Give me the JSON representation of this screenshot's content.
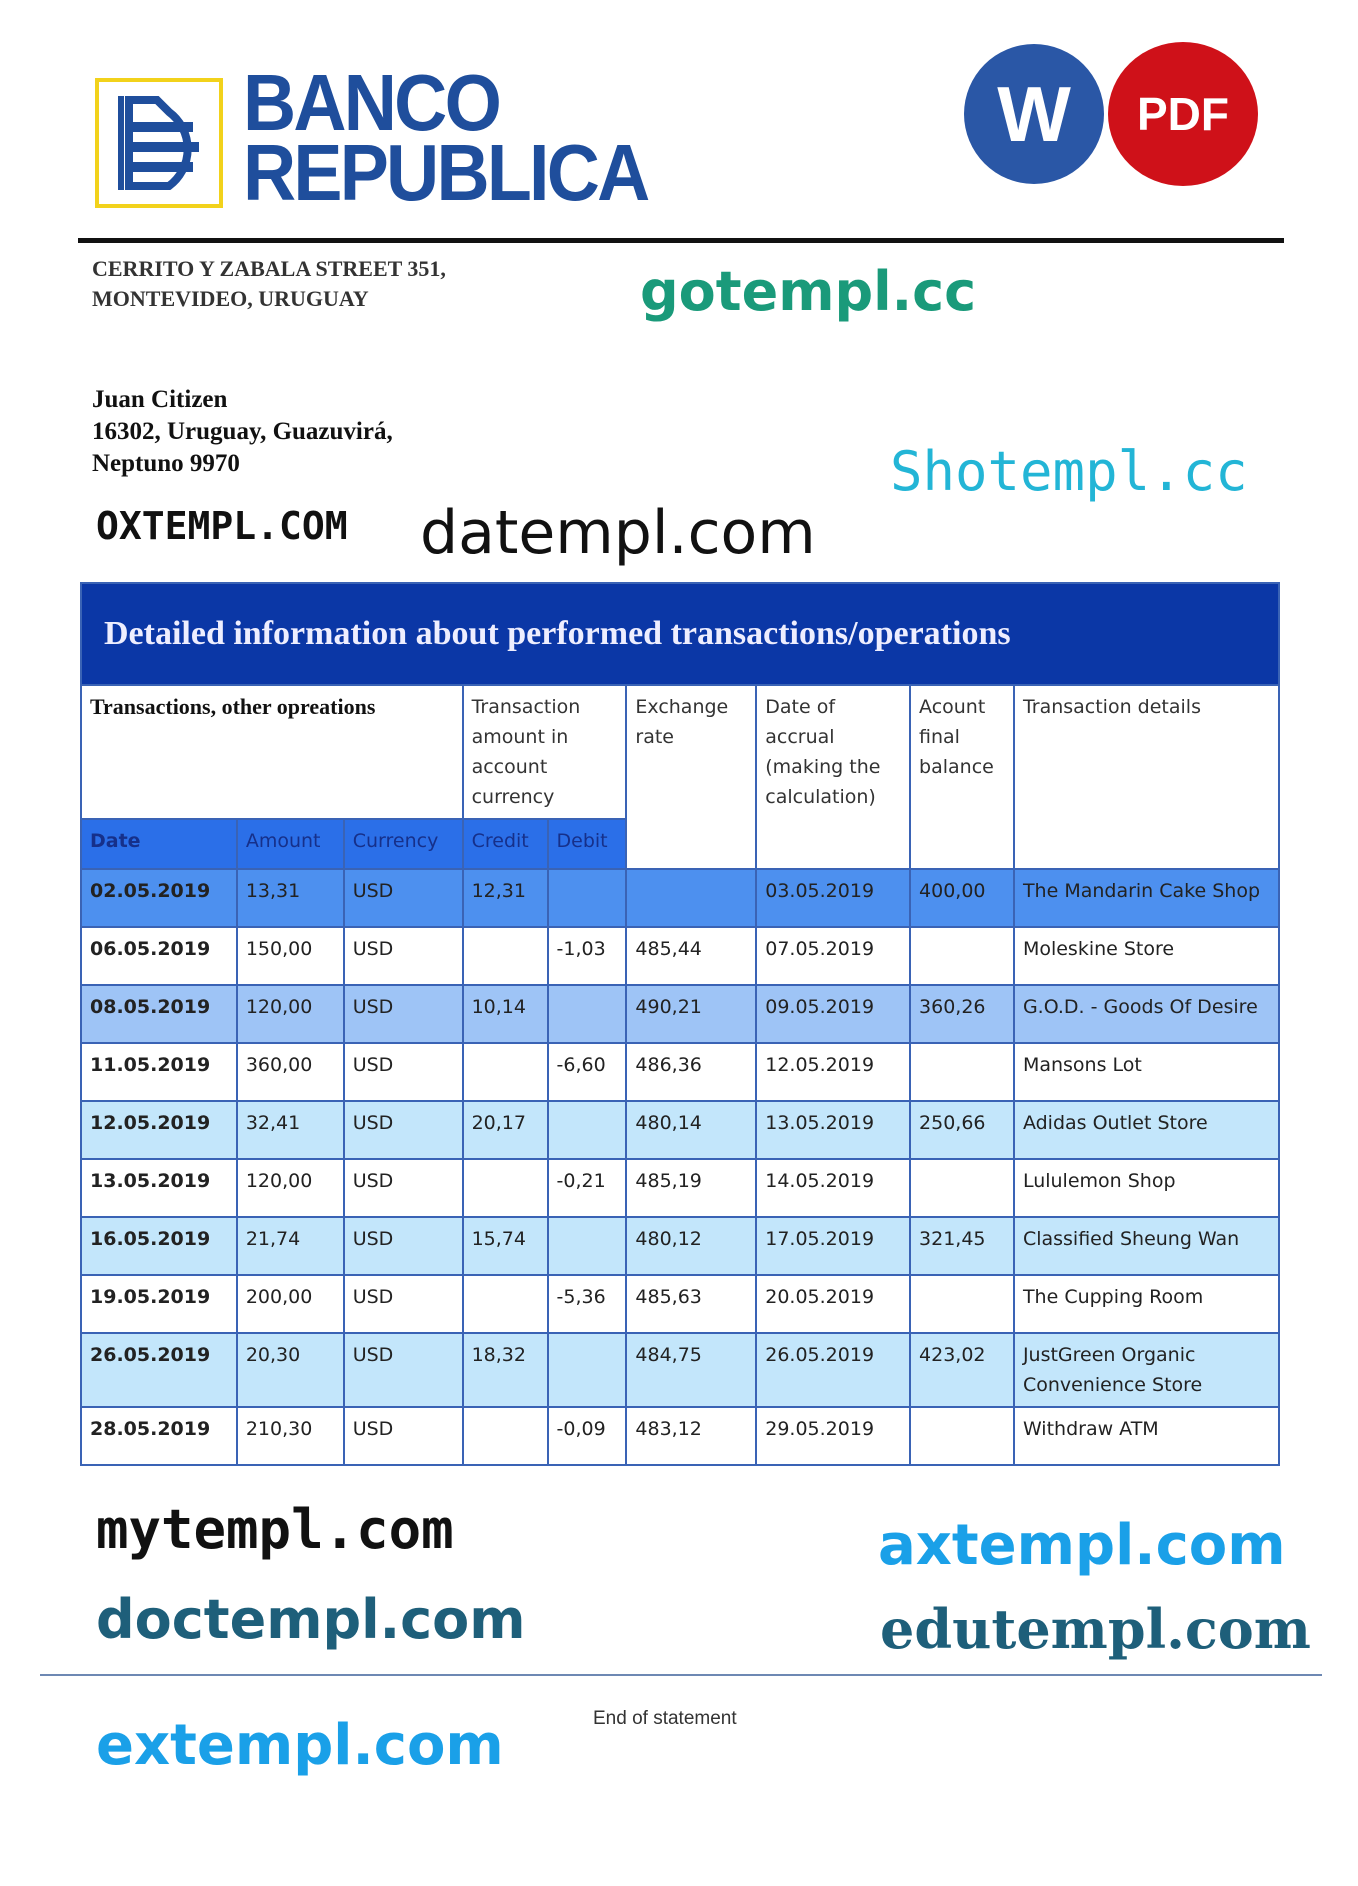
{
  "bank": {
    "name_line1": "BANCO",
    "name_line2": "REPUBLICA",
    "address_line1": "CERRITO Y ZABALA STREET 351,",
    "address_line2": "MONTEVIDEO, URUGUAY",
    "brand_color": "#1f4e9c"
  },
  "badges": {
    "word": "W",
    "pdf": "PDF",
    "word_color": "#2a57a6",
    "pdf_color": "#cf1119"
  },
  "customer": {
    "name": "Juan Citizen",
    "address_line1": "16302, Uruguay, Guazuvirá,",
    "address_line2": "Neptuno 9970"
  },
  "table": {
    "title": "Detailed information about performed transactions/operations",
    "headers": {
      "transactions": "Transactions, other opreations",
      "amount_in_currency": "Transaction amount in account currency",
      "exchange_rate": "Exchange rate",
      "date_of_accrual": "Date of accrual (making the calculation)",
      "final_balance": "Acount final balance",
      "details": "Transaction details"
    },
    "subheaders": [
      "Date",
      "Amount",
      "Currency",
      "Credit",
      "Debit"
    ],
    "rows": [
      {
        "date": "02.05.2019",
        "amount": "13,31",
        "currency": "USD",
        "credit": "12,31",
        "debit": "",
        "rate": "",
        "accrual": "03.05.2019",
        "balance": "400,00",
        "details": "The Mandarin Cake Shop"
      },
      {
        "date": "06.05.2019",
        "amount": "150,00",
        "currency": "USD",
        "credit": "",
        "debit": "-1,03",
        "rate": "485,44",
        "accrual": "07.05.2019",
        "balance": "",
        "details": "Moleskine Store"
      },
      {
        "date": "08.05.2019",
        "amount": "120,00",
        "currency": "USD",
        "credit": "10,14",
        "debit": "",
        "rate": "490,21",
        "accrual": "09.05.2019",
        "balance": "360,26",
        "details": "G.O.D. - Goods Of Desire"
      },
      {
        "date": "11.05.2019",
        "amount": "360,00",
        "currency": "USD",
        "credit": "",
        "debit": "-6,60",
        "rate": "486,36",
        "accrual": "12.05.2019",
        "balance": "",
        "details": "Mansons Lot"
      },
      {
        "date": "12.05.2019",
        "amount": "32,41",
        "currency": "USD",
        "credit": "20,17",
        "debit": "",
        "rate": "480,14",
        "accrual": "13.05.2019",
        "balance": "250,66",
        "details": "Adidas Outlet Store"
      },
      {
        "date": "13.05.2019",
        "amount": "120,00",
        "currency": "USD",
        "credit": "",
        "debit": "-0,21",
        "rate": "485,19",
        "accrual": "14.05.2019",
        "balance": "",
        "details": "Lululemon Shop"
      },
      {
        "date": "16.05.2019",
        "amount": "21,74",
        "currency": "USD",
        "credit": "15,74",
        "debit": "",
        "rate": "480,12",
        "accrual": "17.05.2019",
        "balance": "321,45",
        "details": "Classified Sheung Wan"
      },
      {
        "date": "19.05.2019",
        "amount": "200,00",
        "currency": "USD",
        "credit": "",
        "debit": "-5,36",
        "rate": "485,63",
        "accrual": "20.05.2019",
        "balance": "",
        "details": "The Cupping Room"
      },
      {
        "date": "26.05.2019",
        "amount": "20,30",
        "currency": "USD",
        "credit": "18,32",
        "debit": "",
        "rate": "484,75",
        "accrual": "26.05.2019",
        "balance": "423,02",
        "details": "JustGreen Organic Convenience Store"
      },
      {
        "date": "28.05.2019",
        "amount": "210,30",
        "currency": "USD",
        "credit": "",
        "debit": "-0,09",
        "rate": "483,12",
        "accrual": "29.05.2019",
        "balance": "",
        "details": "Withdraw ATM"
      }
    ]
  },
  "footer": {
    "end_text": "End of statement"
  },
  "watermarks": [
    "gotempl.cc",
    "Shotempl.cc",
    "OXTEMPL.COM",
    "datempl.com",
    "mytempl.com",
    "doctempl.com",
    "edutempl.com",
    "axtempl.com",
    "extempl.com"
  ]
}
